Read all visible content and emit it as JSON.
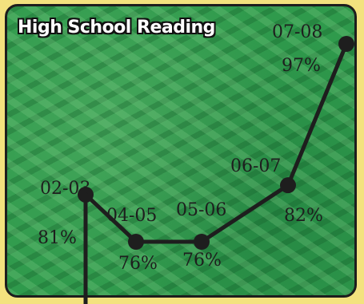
{
  "chart_data": {
    "type": "line",
    "title": "High School Reading",
    "categories": [
      "02-03",
      "04-05",
      "05-06",
      "06-07",
      "07-08"
    ],
    "values": [
      81,
      76,
      76,
      82,
      97
    ],
    "value_labels": [
      "81%",
      "76%",
      "76%",
      "82%",
      "97%"
    ],
    "xlabel": "",
    "ylabel": "",
    "grid": false,
    "legend": "none"
  }
}
